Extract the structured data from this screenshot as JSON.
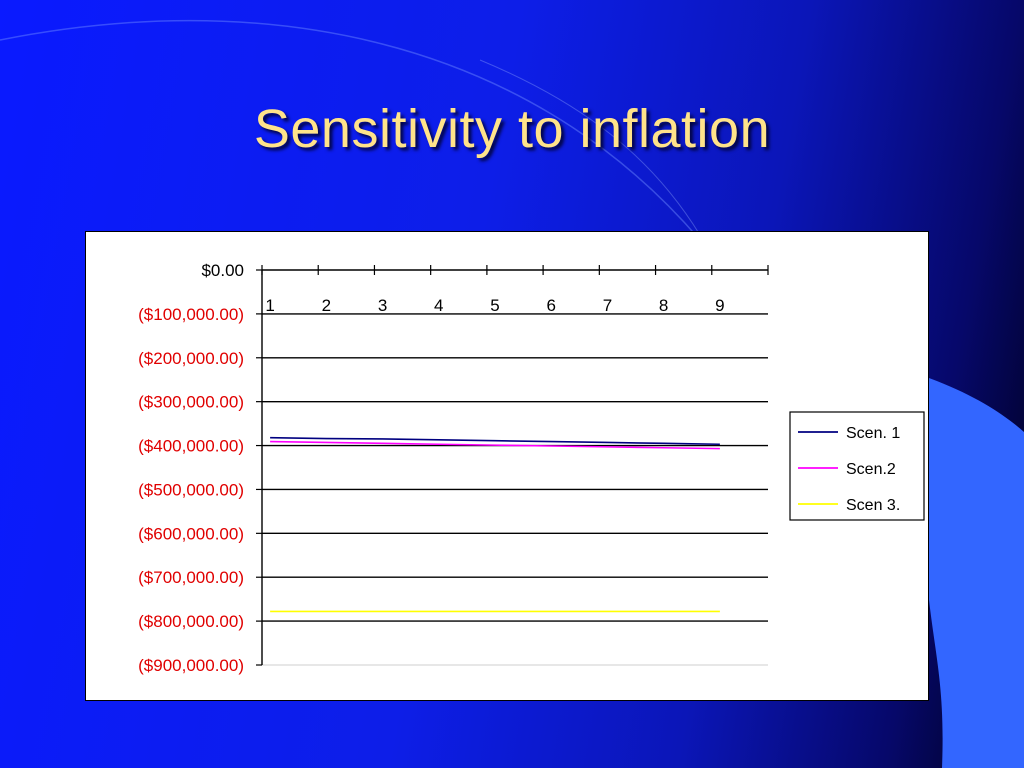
{
  "slide": {
    "title": "Sensitivity to inflation"
  },
  "colors": {
    "background": "#0d1ee8",
    "title": "#ffe38a",
    "negative_label": "#e00000",
    "positive_label": "#000000",
    "decor_light_blue": "#3366ff"
  },
  "chart_data": {
    "type": "line",
    "title": "",
    "xlabel": "",
    "ylabel": "",
    "categories": [
      "1",
      "2",
      "3",
      "4",
      "5",
      "6",
      "7",
      "8",
      "9"
    ],
    "ylim": [
      -900000,
      0
    ],
    "y_ticks": [
      0,
      -100000,
      -200000,
      -300000,
      -400000,
      -500000,
      -600000,
      -700000,
      -800000,
      -900000
    ],
    "y_tick_labels": [
      "$0.00",
      "($100,000.00)",
      "($200,000.00)",
      "($300,000.00)",
      "($400,000.00)",
      "($500,000.00)",
      "($600,000.00)",
      "($700,000.00)",
      "($800,000.00)",
      "($900,000.00)"
    ],
    "x_axis_position": "top (at $0.00)",
    "grid": true,
    "legend_position": "right",
    "series": [
      {
        "name": "Scen. 1",
        "color": "#000080",
        "values": [
          -382000,
          -384000,
          -385000,
          -387000,
          -389000,
          -391000,
          -393000,
          -395000,
          -397000
        ]
      },
      {
        "name": "Scen.2",
        "color": "#ff00ff",
        "values": [
          -391000,
          -393000,
          -395000,
          -397000,
          -399000,
          -401000,
          -403000,
          -405000,
          -407000
        ]
      },
      {
        "name": "Scen 3.",
        "color": "#ffff00",
        "values": [
          -778000,
          -778000,
          -778000,
          -778000,
          -778000,
          -778000,
          -778000,
          -778000,
          -778000
        ]
      }
    ]
  }
}
